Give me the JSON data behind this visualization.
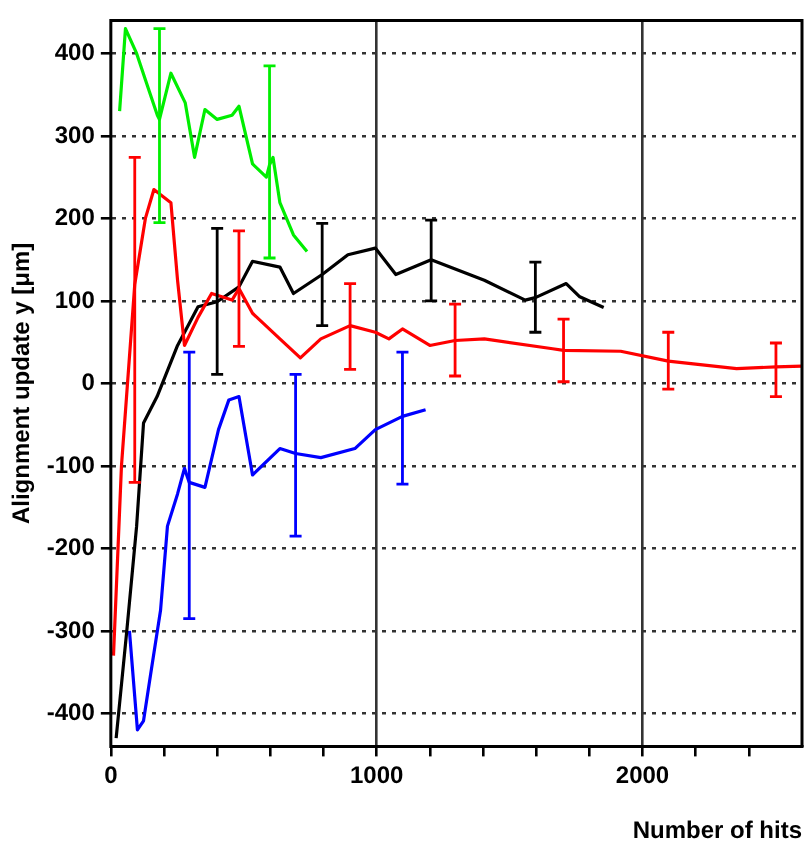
{
  "chart_data": {
    "type": "line",
    "xlabel": "Number of hits",
    "ylabel": "Alignment update y [μm]",
    "xlim": [
      0,
      2600
    ],
    "ylim": [
      -440,
      440
    ],
    "xticks": [
      0,
      {
        "value": 200,
        "label": null
      },
      {
        "value": 400,
        "label": null
      },
      {
        "value": 600,
        "label": null
      },
      {
        "value": 800,
        "label": null
      },
      1000,
      {
        "value": 1200,
        "label": null
      },
      {
        "value": 1400,
        "label": null
      },
      {
        "value": 1600,
        "label": null
      },
      {
        "value": 1800,
        "label": null
      },
      2000,
      {
        "value": 2200,
        "label": null
      },
      {
        "value": 2400,
        "label": null
      }
    ],
    "yticks": [
      -400,
      -300,
      -200,
      -100,
      0,
      100,
      200,
      300,
      400
    ],
    "grid": true,
    "legend": false,
    "marker": "none",
    "line_style": "solid",
    "series": [
      {
        "color": "#00ee00",
        "x": [
          33,
          55,
          97,
          130,
          175,
          183,
          226,
          280,
          315,
          354,
          400,
          456,
          482,
          533,
          585,
          597,
          610,
          636,
          687,
          738
        ],
        "values": [
          330,
          430,
          400,
          368,
          325,
          320,
          376,
          340,
          274,
          332,
          320,
          325,
          336,
          266,
          250,
          265,
          274,
          219,
          180,
          160
        ],
        "errors": [
          null,
          null,
          null,
          null,
          null,
          [
            195,
            430
          ],
          null,
          null,
          null,
          null,
          null,
          null,
          null,
          null,
          null,
          [
            152,
            385
          ],
          null,
          null,
          null,
          null
        ]
      },
      {
        "color": "#ff0000",
        "x": [
          10,
          40,
          90,
          130,
          162,
          226,
          251,
          277,
          328,
          379,
          456,
          482,
          533,
          636,
          713,
          790,
          900,
          995,
          1046,
          1097,
          1200,
          1295,
          1405,
          1662,
          1703,
          1918,
          2097,
          2354,
          2502,
          2600
        ],
        "values": [
          -330,
          -100,
          120,
          200,
          235,
          219,
          125,
          46,
          80,
          109,
          101,
          115,
          85,
          54,
          31,
          54,
          70,
          62,
          54,
          66,
          46,
          52,
          54,
          42,
          40,
          39,
          27,
          18,
          20,
          21
        ],
        "errors": [
          null,
          null,
          [
            -120,
            274
          ],
          null,
          null,
          null,
          null,
          null,
          null,
          null,
          null,
          [
            45,
            185
          ],
          null,
          null,
          null,
          null,
          [
            17,
            121
          ],
          null,
          null,
          null,
          null,
          [
            9,
            96
          ],
          null,
          null,
          [
            2,
            78
          ],
          null,
          [
            -7,
            62
          ],
          null,
          [
            -16,
            49
          ],
          null
        ]
      },
      {
        "color": "#000000",
        "x": [
          20,
          60,
          97,
          123,
          174,
          251,
          328,
          400,
          482,
          533,
          636,
          687,
          795,
          892,
          995,
          1072,
          1205,
          1405,
          1559,
          1597,
          1713,
          1764,
          1854
        ],
        "values": [
          -430,
          -300,
          -173,
          -48,
          -16,
          46,
          93,
          99,
          117,
          148,
          141,
          109,
          132,
          156,
          164,
          132,
          150,
          125,
          101,
          104,
          121,
          105,
          92
        ],
        "errors": [
          null,
          null,
          null,
          null,
          null,
          null,
          null,
          [
            11,
            188
          ],
          null,
          null,
          null,
          null,
          [
            70,
            194
          ],
          null,
          null,
          null,
          [
            100,
            198
          ],
          null,
          null,
          [
            62,
            147
          ],
          null,
          null,
          null
        ]
      },
      {
        "color": "#0000ff",
        "x": [
          70,
          100,
          123,
          149,
          187,
          213,
          251,
          277,
          295,
          354,
          405,
          444,
          482,
          533,
          636,
          695,
          790,
          918,
          995,
          1097,
          1184
        ],
        "values": [
          -300,
          -420,
          -409,
          -354,
          -275,
          -173,
          -134,
          -103,
          -120,
          -126,
          -56,
          -20,
          -16,
          -111,
          -79,
          -85,
          -90,
          -79,
          -56,
          -40,
          -32
        ],
        "errors": [
          null,
          null,
          null,
          null,
          null,
          null,
          null,
          null,
          [
            -285,
            38
          ],
          null,
          null,
          null,
          null,
          null,
          null,
          [
            -185,
            11
          ],
          null,
          null,
          null,
          [
            -122,
            38
          ],
          null
        ]
      }
    ]
  }
}
